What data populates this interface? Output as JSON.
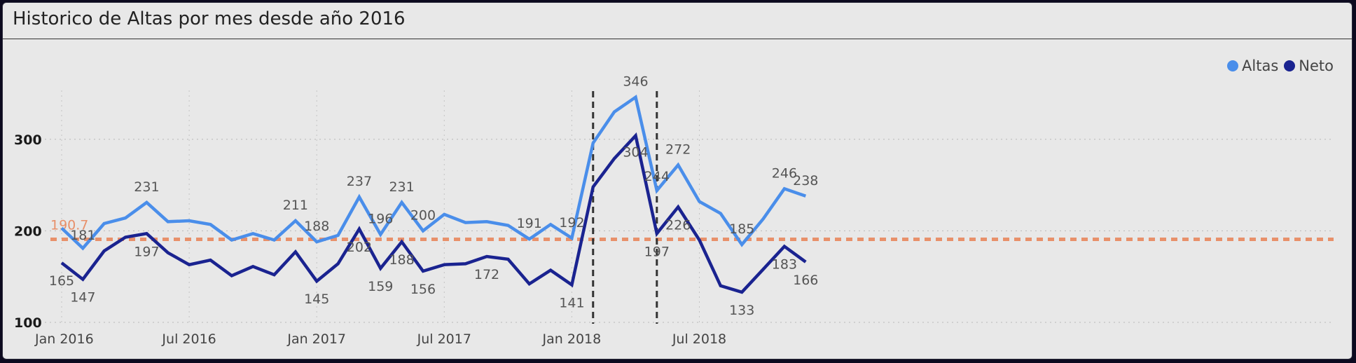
{
  "header": {
    "title": "Historico de Altas por mes desde año 2016"
  },
  "colors": {
    "altas": "#4a8eea",
    "neto": "#1a2390",
    "reference": "#e8906a",
    "marker": "#333333"
  },
  "chart_data": {
    "type": "line",
    "title": "Historico de Altas por mes desde año 2016",
    "xlabel": "",
    "ylabel": "",
    "x": [
      "2016-01",
      "2016-02",
      "2016-03",
      "2016-04",
      "2016-05",
      "2016-06",
      "2016-07",
      "2016-08",
      "2016-09",
      "2016-10",
      "2016-11",
      "2016-12",
      "2017-01",
      "2017-02",
      "2017-03",
      "2017-04",
      "2017-05",
      "2017-06",
      "2017-07",
      "2017-08",
      "2017-09",
      "2017-10",
      "2017-11",
      "2017-12",
      "2018-01",
      "2018-02",
      "2018-03",
      "2018-04",
      "2018-05",
      "2018-06",
      "2018-07",
      "2018-08",
      "2018-09",
      "2018-10",
      "2018-11",
      "2018-12"
    ],
    "x_tick_labels": [
      "Jan 2016",
      "Jul 2016",
      "Jan 2017",
      "Jul 2017",
      "Jan 2018",
      "Jul 2018"
    ],
    "x_tick_indices": [
      0,
      6,
      12,
      18,
      24,
      30
    ],
    "y_ticks": [
      100,
      200,
      300
    ],
    "ylim": [
      100,
      350
    ],
    "grid": true,
    "legend_position": "top-right",
    "series": [
      {
        "name": "Altas",
        "color": "#4a8eea",
        "values": [
          203,
          181,
          208,
          214,
          231,
          210,
          211,
          207,
          190,
          197,
          190,
          211,
          188,
          195,
          237,
          196,
          231,
          200,
          218,
          209,
          210,
          206,
          191,
          207,
          192,
          296,
          330,
          346,
          244,
          272,
          232,
          219,
          185,
          213,
          246,
          238
        ],
        "data_labels": [
          null,
          "181",
          null,
          null,
          "231",
          null,
          null,
          null,
          null,
          null,
          null,
          "211",
          "188",
          null,
          "237",
          "196",
          "231",
          "200",
          null,
          null,
          null,
          null,
          "191",
          null,
          "192",
          null,
          null,
          "346",
          "244",
          "272",
          null,
          null,
          "185",
          null,
          "246",
          "238"
        ]
      },
      {
        "name": "Neto",
        "color": "#1a2390",
        "values": [
          165,
          147,
          178,
          193,
          197,
          176,
          163,
          168,
          151,
          161,
          152,
          177,
          145,
          164,
          202,
          159,
          188,
          156,
          163,
          164,
          172,
          169,
          142,
          157,
          141,
          248,
          279,
          304,
          197,
          226,
          190,
          140,
          133,
          158,
          183,
          166
        ],
        "data_labels": [
          "165",
          "147",
          null,
          null,
          "197",
          null,
          null,
          null,
          null,
          null,
          null,
          null,
          "145",
          null,
          "202",
          "159",
          "188",
          "156",
          null,
          null,
          "172",
          null,
          null,
          null,
          "141",
          null,
          null,
          "304",
          "197",
          "226",
          null,
          null,
          "133",
          null,
          "183",
          "166"
        ]
      }
    ],
    "reference_line": {
      "value": 190.7,
      "label": "190.7"
    },
    "vertical_markers": [
      "2018-02",
      "2018-05"
    ]
  }
}
